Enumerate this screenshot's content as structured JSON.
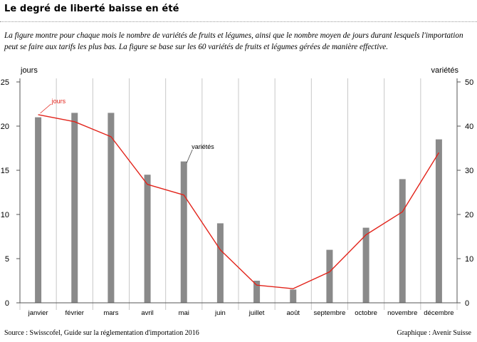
{
  "title": "Le degré de liberté baisse en été",
  "subtitle": "La figure montre pour chaque mois le nombre de variétés de fruits et légumes, ainsi que le nombre moyen de jours durant lesquels l'importation peut se faire aux tarifs les plus bas. La figure se base sur les 60 variétés de fruits et légumes gérées de manière effective.",
  "source": "Source : Swisscofel, Guide sur la réglementation d'importation 2016",
  "credit": "Graphique : Avenir Suisse",
  "chart_data": {
    "type": "bar+line",
    "categories": [
      "janvier",
      "février",
      "mars",
      "avril",
      "mai",
      "juin",
      "juillet",
      "août",
      "septembre",
      "octobre",
      "novembre",
      "décembre"
    ],
    "left_axis": {
      "label": "jours",
      "ylim": [
        0,
        25
      ],
      "ticks": [
        "0",
        "5",
        "10",
        "15",
        "20",
        "25"
      ]
    },
    "right_axis": {
      "label": "variétés",
      "ylim": [
        0,
        50
      ],
      "ticks": [
        "0",
        "10",
        "20",
        "30",
        "40",
        "50"
      ]
    },
    "series": [
      {
        "name": "variétés",
        "type": "bar",
        "axis": "right",
        "color": "#8a8a8a",
        "values": [
          42,
          43,
          43,
          29,
          32,
          18,
          5,
          3,
          12,
          17,
          28,
          37
        ]
      },
      {
        "name": "jours",
        "type": "line",
        "axis": "left",
        "color": "#e2231a",
        "values": [
          21.3,
          20.5,
          18.8,
          13.4,
          12.2,
          6.0,
          2.0,
          1.6,
          3.5,
          7.7,
          10.3,
          17.0
        ]
      }
    ],
    "grid": "vertical",
    "legend": "inline labels"
  }
}
